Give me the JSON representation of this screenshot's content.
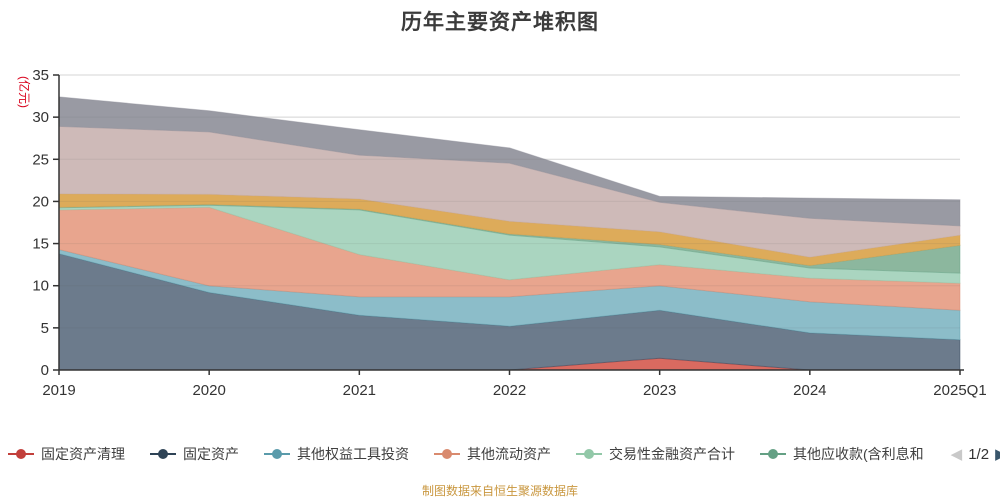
{
  "title": "历年主要资产堆积图",
  "footer": "制图数据来自恒生聚源数据库",
  "y_axis": {
    "unit_label": "(亿元)",
    "unit_label_color": "#d9001b",
    "tick_labels": [
      "0",
      "5",
      "10",
      "15",
      "20",
      "25",
      "30",
      "35"
    ]
  },
  "x_axis": {
    "tick_labels": [
      "2019",
      "2020",
      "2021",
      "2022",
      "2023",
      "2024",
      "2025Q1"
    ]
  },
  "legend": {
    "items": [
      {
        "label": "固定资产清理",
        "color": "#c23f3b"
      },
      {
        "label": "固定资产",
        "color": "#2e4356"
      },
      {
        "label": "其他权益工具投资",
        "color": "#5a9bab"
      },
      {
        "label": "其他流动资产",
        "color": "#d98a6e"
      },
      {
        "label": "交易性金融资产合计",
        "color": "#92c8a8"
      },
      {
        "label": "其他应收款(含利息和",
        "color": "#64a084"
      }
    ],
    "pager": {
      "prev_icon": "left-arrow",
      "label": "1/2",
      "next_icon": "right-arrow"
    }
  },
  "chart_data": {
    "type": "area",
    "stacked": true,
    "title": "历年主要资产堆积图",
    "xlabel": "",
    "ylabel": "(亿元)",
    "ylim": [
      0,
      35
    ],
    "ytick_step": 5,
    "grid": true,
    "legend_position": "bottom",
    "categories": [
      "2019",
      "2020",
      "2021",
      "2022",
      "2023",
      "2024",
      "2025Q1"
    ],
    "series": [
      {
        "name": "固定资产清理",
        "legend_visible": true,
        "line_color": "#c23f3b",
        "area_color": "#d96a60",
        "values": [
          0,
          0,
          0,
          0,
          1.4,
          0,
          0
        ]
      },
      {
        "name": "固定资产",
        "legend_visible": true,
        "line_color": "#2e4356",
        "area_color": "#6c7b8c",
        "values": [
          13.8,
          9.2,
          6.5,
          5.2,
          5.7,
          4.4,
          3.6
        ]
      },
      {
        "name": "其他权益工具投资",
        "legend_visible": true,
        "line_color": "#5a9bab",
        "area_color": "#8cbdc9",
        "values": [
          0.5,
          0.8,
          2.2,
          3.5,
          2.9,
          3.7,
          3.5
        ]
      },
      {
        "name": "其他流动资产",
        "legend_visible": true,
        "line_color": "#d98a6e",
        "area_color": "#e8a58e",
        "values": [
          4.7,
          9.3,
          5.0,
          2.0,
          2.5,
          2.8,
          3.2
        ]
      },
      {
        "name": "交易性金融资产合计",
        "legend_visible": true,
        "line_color": "#92c8a8",
        "area_color": "#aad5c0",
        "values": [
          0.25,
          0.25,
          5.3,
          5.3,
          2.1,
          1.2,
          1.2
        ]
      },
      {
        "name": "其他应收款(含利息和",
        "legend_visible": true,
        "line_color": "#64a084",
        "area_color": "#8cb79e",
        "values": [
          0.05,
          0.1,
          0.1,
          0.15,
          0.3,
          0.3,
          3.3
        ]
      },
      {
        "name": "",
        "legend_visible": false,
        "line_color": "#d4a04a",
        "area_color": "#ddab5a",
        "values": [
          1.6,
          1.2,
          1.2,
          1.5,
          1.5,
          1.0,
          1.2
        ]
      },
      {
        "name": "",
        "legend_visible": false,
        "line_color": "#c3aaa8",
        "area_color": "#cebab8",
        "values": [
          8.0,
          7.4,
          5.2,
          6.9,
          3.5,
          4.6,
          1.1
        ]
      },
      {
        "name": "",
        "legend_visible": false,
        "line_color": "#8d8e98",
        "area_color": "#999aa3",
        "values": [
          3.5,
          2.5,
          3.0,
          1.8,
          0.7,
          2.4,
          3.1
        ]
      }
    ]
  }
}
